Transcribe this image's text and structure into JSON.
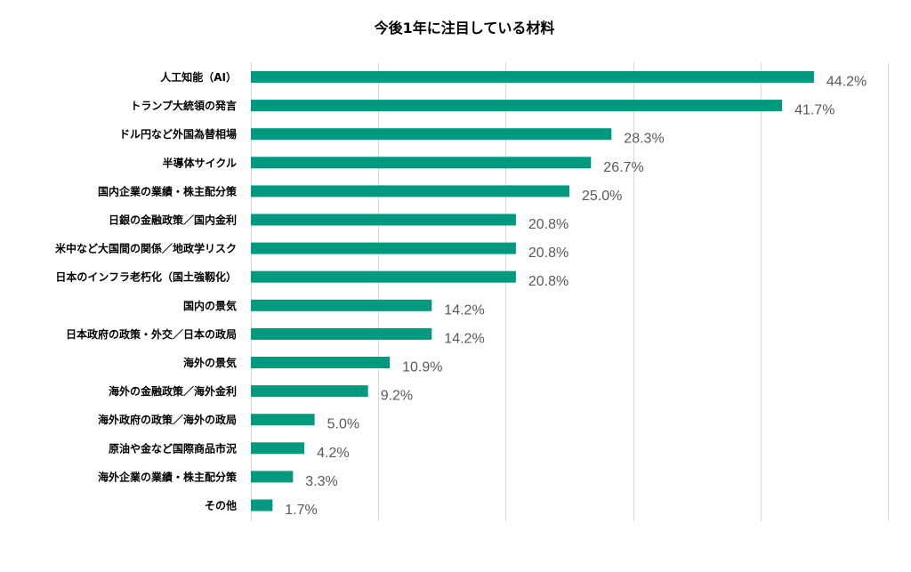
{
  "chart_data": {
    "type": "bar",
    "orientation": "horizontal",
    "title": "今後1年に注目している材料",
    "xlabel": "",
    "ylabel": "",
    "xlim": [
      0,
      50
    ],
    "grid": true,
    "bar_color": "#009980",
    "gridline_color": "#d9d9d9",
    "label_color": "#595959",
    "categories": [
      "人工知能（AI）",
      "トランプ大統領の発言",
      "ドル円など外国為替相場",
      "半導体サイクル",
      "国内企業の業績・株主配分策",
      "日銀の金融政策／国内金利",
      "米中など大国間の関係／地政学リスク",
      "日本のインフラ老朽化（国土強靱化）",
      "国内の景気",
      "日本政府の政策・外交／日本の政局",
      "海外の景気",
      "海外の金融政策／海外金利",
      "海外政府の政策／海外の政局",
      "原油や金など国際商品市況",
      "海外企業の業績・株主配分策",
      "その他"
    ],
    "values": [
      44.2,
      41.7,
      28.3,
      26.7,
      25.0,
      20.8,
      20.8,
      20.8,
      14.2,
      14.2,
      10.9,
      9.2,
      5.0,
      4.2,
      3.3,
      1.7
    ],
    "value_labels": [
      "44.2%",
      "41.7%",
      "28.3%",
      "26.7%",
      "25.0%",
      "20.8%",
      "20.8%",
      "20.8%",
      "14.2%",
      "14.2%",
      "10.9%",
      "9.2%",
      "5.0%",
      "4.2%",
      "3.3%",
      "1.7%"
    ]
  }
}
